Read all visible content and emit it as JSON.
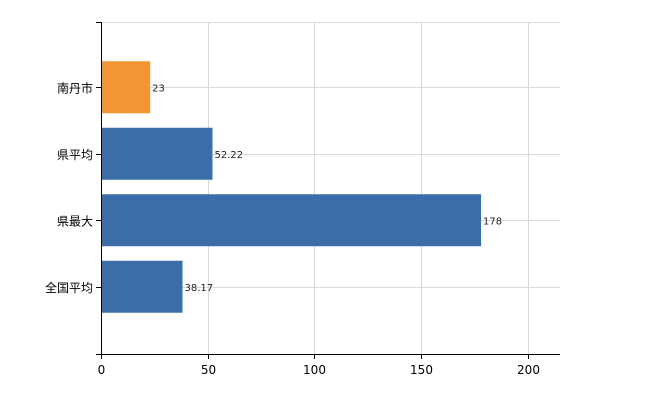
{
  "chart_data": {
    "type": "bar",
    "orientation": "horizontal",
    "categories": [
      "南丹市",
      "県平均",
      "県最大",
      "全国平均"
    ],
    "values": [
      23,
      52.22,
      178,
      38.17
    ],
    "value_labels": [
      "23",
      "52.22",
      "178",
      "38.17"
    ],
    "bar_colors": [
      "#F39534",
      "#3B6EA8",
      "#3B6EA8",
      "#3B6EA8"
    ],
    "xlim": [
      0,
      215
    ],
    "x_ticks": [
      0,
      50,
      100,
      150,
      200
    ],
    "x_tick_labels": [
      "0",
      "50",
      "100",
      "150",
      "200"
    ],
    "grid": true,
    "grid_color": "#D9D9D9",
    "title": "",
    "xlabel": "",
    "ylabel": ""
  }
}
